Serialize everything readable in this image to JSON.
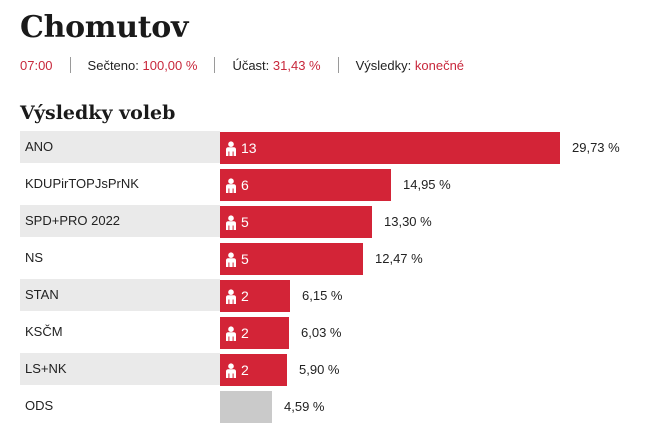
{
  "title": "Chomutov",
  "meta": {
    "time": "07:00",
    "counted_label": "Sečteno:",
    "counted_value": "100,00 %",
    "turnout_label": "Účast:",
    "turnout_value": "31,43 %",
    "results_label": "Výsledky:",
    "results_value": "konečné"
  },
  "results_title": "Výsledky voleb",
  "colors": {
    "accent": "#d32437",
    "no_seats": "#cacaca",
    "label_bg": "#eaeaea"
  },
  "icon": "person-icon",
  "results": [
    {
      "party": "ANO",
      "seats": "13",
      "percent": "29,73 %",
      "value": 29.73
    },
    {
      "party": "KDUPirTOPJsPrNK",
      "seats": "6",
      "percent": "14,95 %",
      "value": 14.95
    },
    {
      "party": "SPD+PRO 2022",
      "seats": "5",
      "percent": "13,30 %",
      "value": 13.3
    },
    {
      "party": "NS",
      "seats": "5",
      "percent": "12,47 %",
      "value": 12.47
    },
    {
      "party": "STAN",
      "seats": "2",
      "percent": "6,15 %",
      "value": 6.15
    },
    {
      "party": "KSČM",
      "seats": "2",
      "percent": "6,03 %",
      "value": 6.03
    },
    {
      "party": "LS+NK",
      "seats": "2",
      "percent": "5,90 %",
      "value": 5.9
    },
    {
      "party": "ODS",
      "seats": "",
      "percent": "4,59 %",
      "value": 4.59
    }
  ]
}
